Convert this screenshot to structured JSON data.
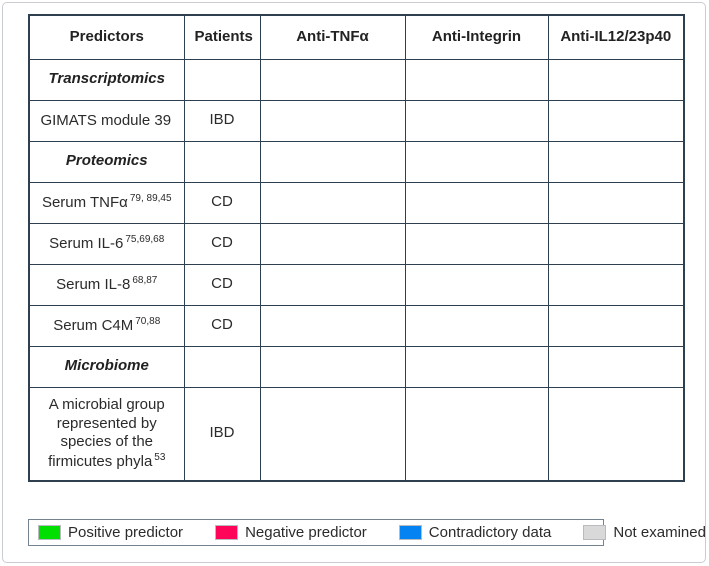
{
  "colors": {
    "positive": "#00DF00",
    "negative": "#FF0559",
    "contradictory": "#0583F2",
    "not-examined": "#D9D9D9",
    "border": "#2E3F50"
  },
  "table": {
    "columns": [
      "Predictors",
      "Patients",
      "Anti-TNFα",
      "Anti-Integrin",
      "Anti-IL12/23p40"
    ],
    "rows": [
      {
        "kind": "section",
        "label": "Transcriptomics"
      },
      {
        "kind": "data",
        "label": "GIMATS module 39",
        "sup": "",
        "patients": "IBD",
        "cells": [
          "negative",
          "positive",
          "not-examined"
        ]
      },
      {
        "kind": "section",
        "label": "Proteomics"
      },
      {
        "kind": "data",
        "label": "Serum TNFα",
        "sup": "79, 89,45",
        "patients": "CD",
        "cells": [
          "negative",
          "not-examined",
          "positive"
        ]
      },
      {
        "kind": "data",
        "label": "Serum IL-6",
        "sup": "75,69,68",
        "patients": "CD",
        "cells": [
          "negative",
          "contradictory",
          "not-examined"
        ]
      },
      {
        "kind": "data",
        "label": "Serum IL-8",
        "sup": "68,87",
        "patients": "CD",
        "cells": [
          "negative",
          "positive",
          "not-examined"
        ]
      },
      {
        "kind": "data",
        "label": "Serum C4M",
        "sup": "70,88",
        "patients": "CD",
        "cells": [
          "positive",
          "negative",
          "not-examined"
        ]
      },
      {
        "kind": "section",
        "label": "Microbiome"
      },
      {
        "kind": "data",
        "label": "A microbial group represented by species of the firmicutes phyla",
        "sup": "53",
        "patients": "IBD",
        "cells": [
          "positive",
          "negative",
          "positive"
        ]
      }
    ]
  },
  "legend": {
    "items": [
      {
        "label": "Positive predictor",
        "status": "positive"
      },
      {
        "label": "Negative predictor",
        "status": "negative"
      },
      {
        "label": "Contradictory data",
        "status": "contradictory"
      },
      {
        "label": "Not examined",
        "status": "not-examined"
      }
    ]
  }
}
